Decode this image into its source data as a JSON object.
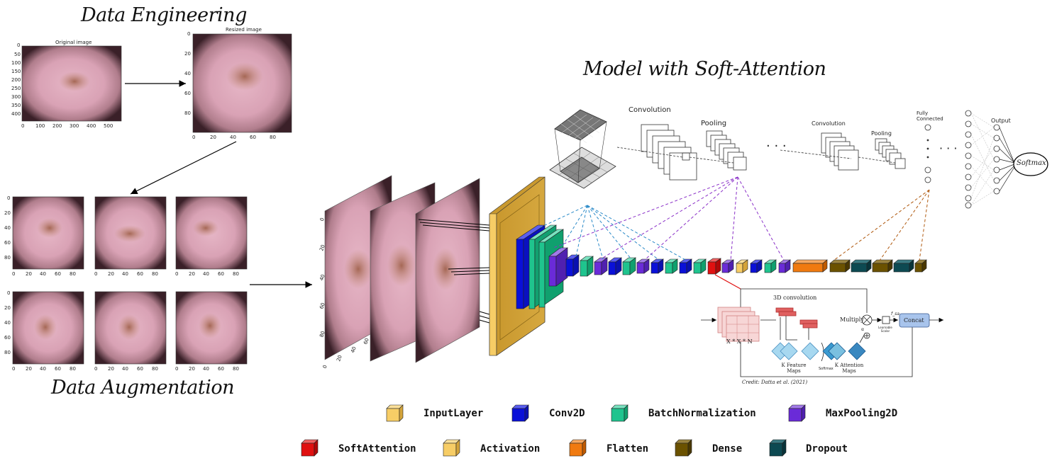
{
  "titles": {
    "data_engineering": "Data Engineering",
    "data_augmentation": "Data Augmentation",
    "model": "Model with Soft-Attention"
  },
  "panels": {
    "original": {
      "title": "Original image",
      "yticks": [
        "0",
        "50",
        "100",
        "150",
        "200",
        "250",
        "300",
        "350",
        "400"
      ],
      "xticks": [
        "0",
        "100",
        "200",
        "300",
        "400",
        "500"
      ]
    },
    "resized": {
      "title": "Resized image",
      "yticks": [
        "0",
        "20",
        "40",
        "60",
        "80"
      ],
      "xticks": [
        "0",
        "20",
        "40",
        "60",
        "80"
      ]
    },
    "aug_yticks": [
      "0",
      "20",
      "40",
      "60",
      "80"
    ],
    "aug_xticks": [
      "0",
      "20",
      "40",
      "60",
      "80"
    ],
    "stack_ticks": [
      "0",
      "20",
      "40",
      "60",
      "80"
    ],
    "stack_xticks": [
      "0",
      "20",
      "40",
      "60"
    ]
  },
  "cnn": {
    "convolution": "Convolution",
    "pooling": "Pooling",
    "convolution2": "Convolution",
    "pooling2": "Pooling",
    "fully_connected": "Fully Connected",
    "output": "Output",
    "softmax": "Softmax",
    "ellipsis": "· · ·"
  },
  "attention": {
    "conv3d": "3D convolution",
    "multiply": "Multiply",
    "xxn": "X * X * N",
    "k_feature": "K  Feature Maps",
    "softmax": "Softmax",
    "k_attention": "K  Attention Maps",
    "learnable": "Learnable Scalar",
    "concat": "Concat",
    "fsa": "f_sa",
    "alpha": "α",
    "credit": "Credit: Datta et al. (2021)"
  },
  "legend": [
    {
      "label": "InputLayer",
      "color": "#f7cd66"
    },
    {
      "label": "Conv2D",
      "color": "#0a10d8"
    },
    {
      "label": "BatchNormalization",
      "color": "#1fc48e"
    },
    {
      "label": "MaxPooling2D",
      "color": "#6a2bd8"
    },
    {
      "label": "SoftAttention",
      "color": "#e01010"
    },
    {
      "label": "Activation",
      "color": "#f7cd66"
    },
    {
      "label": "Flatten",
      "color": "#f07a10"
    },
    {
      "label": "Dense",
      "color": "#6b5200"
    },
    {
      "label": "Dropout",
      "color": "#0d4a52"
    }
  ],
  "colors": {
    "skin_base": "#d8a6b6",
    "skin_dark": "#5a3340",
    "lesion": "#a8644a",
    "input_layer": "#d4a43a"
  }
}
